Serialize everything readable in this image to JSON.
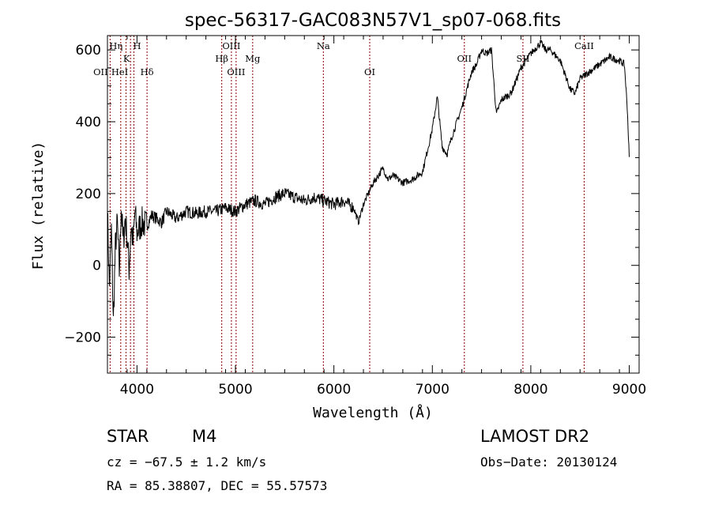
{
  "chart_data": {
    "type": "line",
    "title": "spec-56317-GAC083N57V1_sp07-068.fits",
    "xlabel": "Wavelength (Å)",
    "ylabel": "Flux (relative)",
    "xlim": [
      3700,
      9100
    ],
    "ylim": [
      -300,
      640
    ],
    "xticks": [
      4000,
      5000,
      6000,
      7000,
      8000,
      9000
    ],
    "yticks": [
      -200,
      0,
      200,
      400,
      600
    ],
    "grid": false,
    "line_color": "#000000",
    "marker_color": "#8b0000",
    "series": [
      {
        "x": [
          3700,
          3720,
          3740,
          3760,
          3780,
          3800,
          3820,
          3840,
          3860,
          3880,
          3900,
          3920,
          3940,
          3960,
          3980,
          4000,
          4050,
          4100,
          4150,
          4200,
          4250,
          4300,
          4400,
          4500,
          4600,
          4700,
          4800,
          4900,
          5000,
          5100,
          5200,
          5300,
          5400,
          5500,
          5600,
          5700,
          5800,
          5900,
          6000,
          6100,
          6200,
          6250,
          6300,
          6400,
          6500,
          6550,
          6600,
          6700,
          6800,
          6900,
          7000,
          7050,
          7100,
          7150,
          7200,
          7300,
          7400,
          7450,
          7500,
          7550,
          7600,
          7650,
          7700,
          7800,
          7900,
          8000,
          8100,
          8150,
          8200,
          8300,
          8400,
          8450,
          8500,
          8600,
          8700,
          8800,
          8900,
          8950,
          8980,
          9000
        ],
        "y": [
          150,
          -60,
          100,
          -160,
          50,
          120,
          -20,
          170,
          60,
          130,
          80,
          -10,
          110,
          60,
          150,
          90,
          120,
          110,
          140,
          130,
          120,
          150,
          130,
          150,
          145,
          150,
          150,
          160,
          150,
          170,
          180,
          170,
          190,
          200,
          190,
          180,
          190,
          180,
          170,
          180,
          160,
          120,
          170,
          230,
          270,
          240,
          250,
          230,
          240,
          260,
          380,
          470,
          330,
          310,
          360,
          440,
          540,
          560,
          600,
          590,
          600,
          420,
          460,
          480,
          550,
          590,
          620,
          600,
          600,
          570,
          490,
          480,
          520,
          540,
          560,
          580,
          570,
          560,
          440,
          300
        ]
      }
    ],
    "line_markers": [
      {
        "label": "OII",
        "x": 3727
      },
      {
        "label": "Hη",
        "x": 3835
      },
      {
        "label": "HeI",
        "x": 3889
      },
      {
        "label": "K",
        "x": 3934
      },
      {
        "label": "H",
        "x": 3969
      },
      {
        "label": "Hδ",
        "x": 4102
      },
      {
        "label": "Hβ",
        "x": 4861
      },
      {
        "label": "OIII",
        "x": 4959
      },
      {
        "label": "OIII",
        "x": 5007
      },
      {
        "label": "Mg",
        "x": 5175
      },
      {
        "label": "Na",
        "x": 5893
      },
      {
        "label": "OI",
        "x": 6364
      },
      {
        "label": "OII",
        "x": 7325
      },
      {
        "label": "SII",
        "x": 7920
      },
      {
        "label": "CaII",
        "x": 8542
      }
    ]
  },
  "info": {
    "object_class": "STAR",
    "subclass": "M4",
    "survey": "LAMOST DR2",
    "cz": "cz = −67.5 ± 1.2 km/s",
    "obs_date": "Obs−Date: 20130124",
    "coords": "RA =  85.38807, DEC =  55.57573"
  }
}
